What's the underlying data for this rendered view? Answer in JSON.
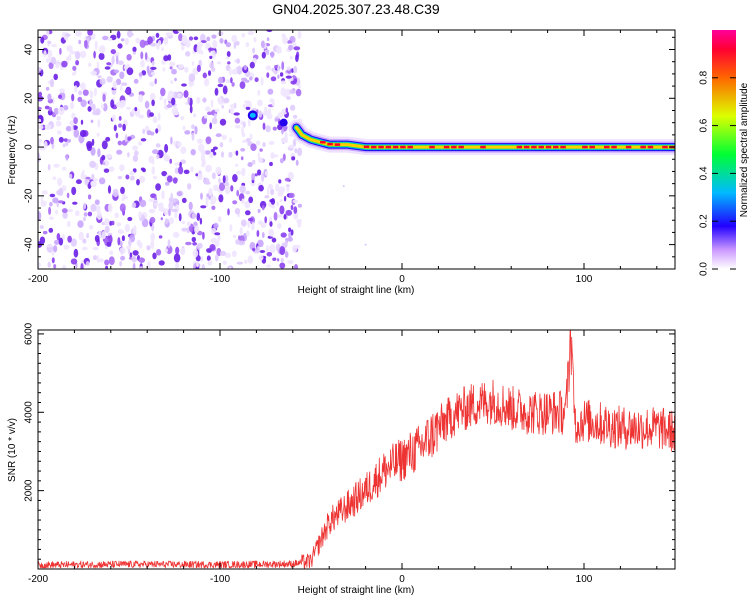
{
  "title": "GN04.2025.307.23.48.C39",
  "chart_data": [
    {
      "type": "heatmap",
      "xlabel": "Height of straight line (km)",
      "ylabel": "Frequency (Hz)",
      "xlim": [
        -200,
        150
      ],
      "ylim": [
        -50,
        48
      ],
      "xticks": [
        -200,
        -100,
        0,
        100
      ],
      "yticks": [
        -40,
        -20,
        0,
        20,
        40
      ],
      "noise_region_x": [
        -200,
        -58
      ],
      "ridge": {
        "x": [
          -58,
          -55,
          -50,
          -45,
          -40,
          -30,
          -20,
          -10,
          0,
          10,
          20,
          30,
          40,
          60,
          80,
          90,
          100,
          120,
          150
        ],
        "frequency_hz": [
          8,
          5,
          3,
          2,
          1,
          1,
          0,
          0,
          0,
          0,
          0,
          0,
          0,
          0,
          0,
          0,
          0,
          0,
          0
        ]
      },
      "colorbar": {
        "label": "Normalized spectral amplitude",
        "range": [
          0.0,
          1.0
        ],
        "ticks": [
          "0.0",
          "0.2",
          "0.4",
          "0.6",
          "0.8"
        ]
      }
    },
    {
      "type": "line",
      "xlabel": "Height of straight line (km)",
      "ylabel": "SNR (10 * v/v)",
      "xlim": [
        -200,
        150
      ],
      "ylim": [
        0,
        6100
      ],
      "xticks": [
        -200,
        -100,
        0,
        100
      ],
      "yticks": [
        2000,
        4000,
        6000
      ],
      "color": "#ee3333",
      "series": [
        {
          "name": "SNR",
          "x": [
            -200,
            -150,
            -100,
            -60,
            -50,
            -45,
            -40,
            -30,
            -20,
            -10,
            0,
            10,
            20,
            30,
            40,
            50,
            60,
            70,
            80,
            90,
            93,
            95,
            100,
            110,
            120,
            130,
            140,
            150
          ],
          "y": [
            100,
            120,
            110,
            130,
            200,
            700,
            1200,
            1600,
            2000,
            2500,
            2800,
            3100,
            3600,
            4000,
            4200,
            4300,
            4100,
            4000,
            4000,
            4000,
            6100,
            3700,
            3800,
            3700,
            3600,
            3600,
            3600,
            3500
          ]
        }
      ]
    }
  ]
}
